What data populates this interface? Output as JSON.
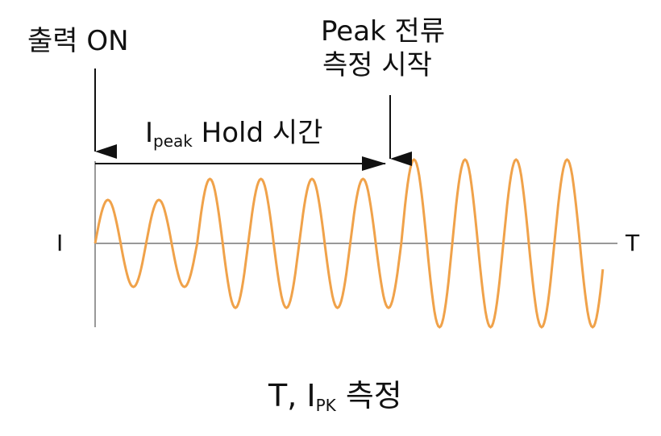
{
  "labels": {
    "output_on": "출력 ON",
    "peak_start_line1": "Peak 전류",
    "peak_start_line2": "측정 시작",
    "hold_main": "I",
    "hold_sub": "peak",
    "hold_rest": " Hold 시간",
    "axis_y": "I",
    "axis_x": "T",
    "caption_main": "T, I",
    "caption_sub": "PK",
    "caption_rest": " 측정"
  },
  "colors": {
    "wave": "#f0a24a",
    "axis": "#999999",
    "arrow": "#111111"
  }
}
